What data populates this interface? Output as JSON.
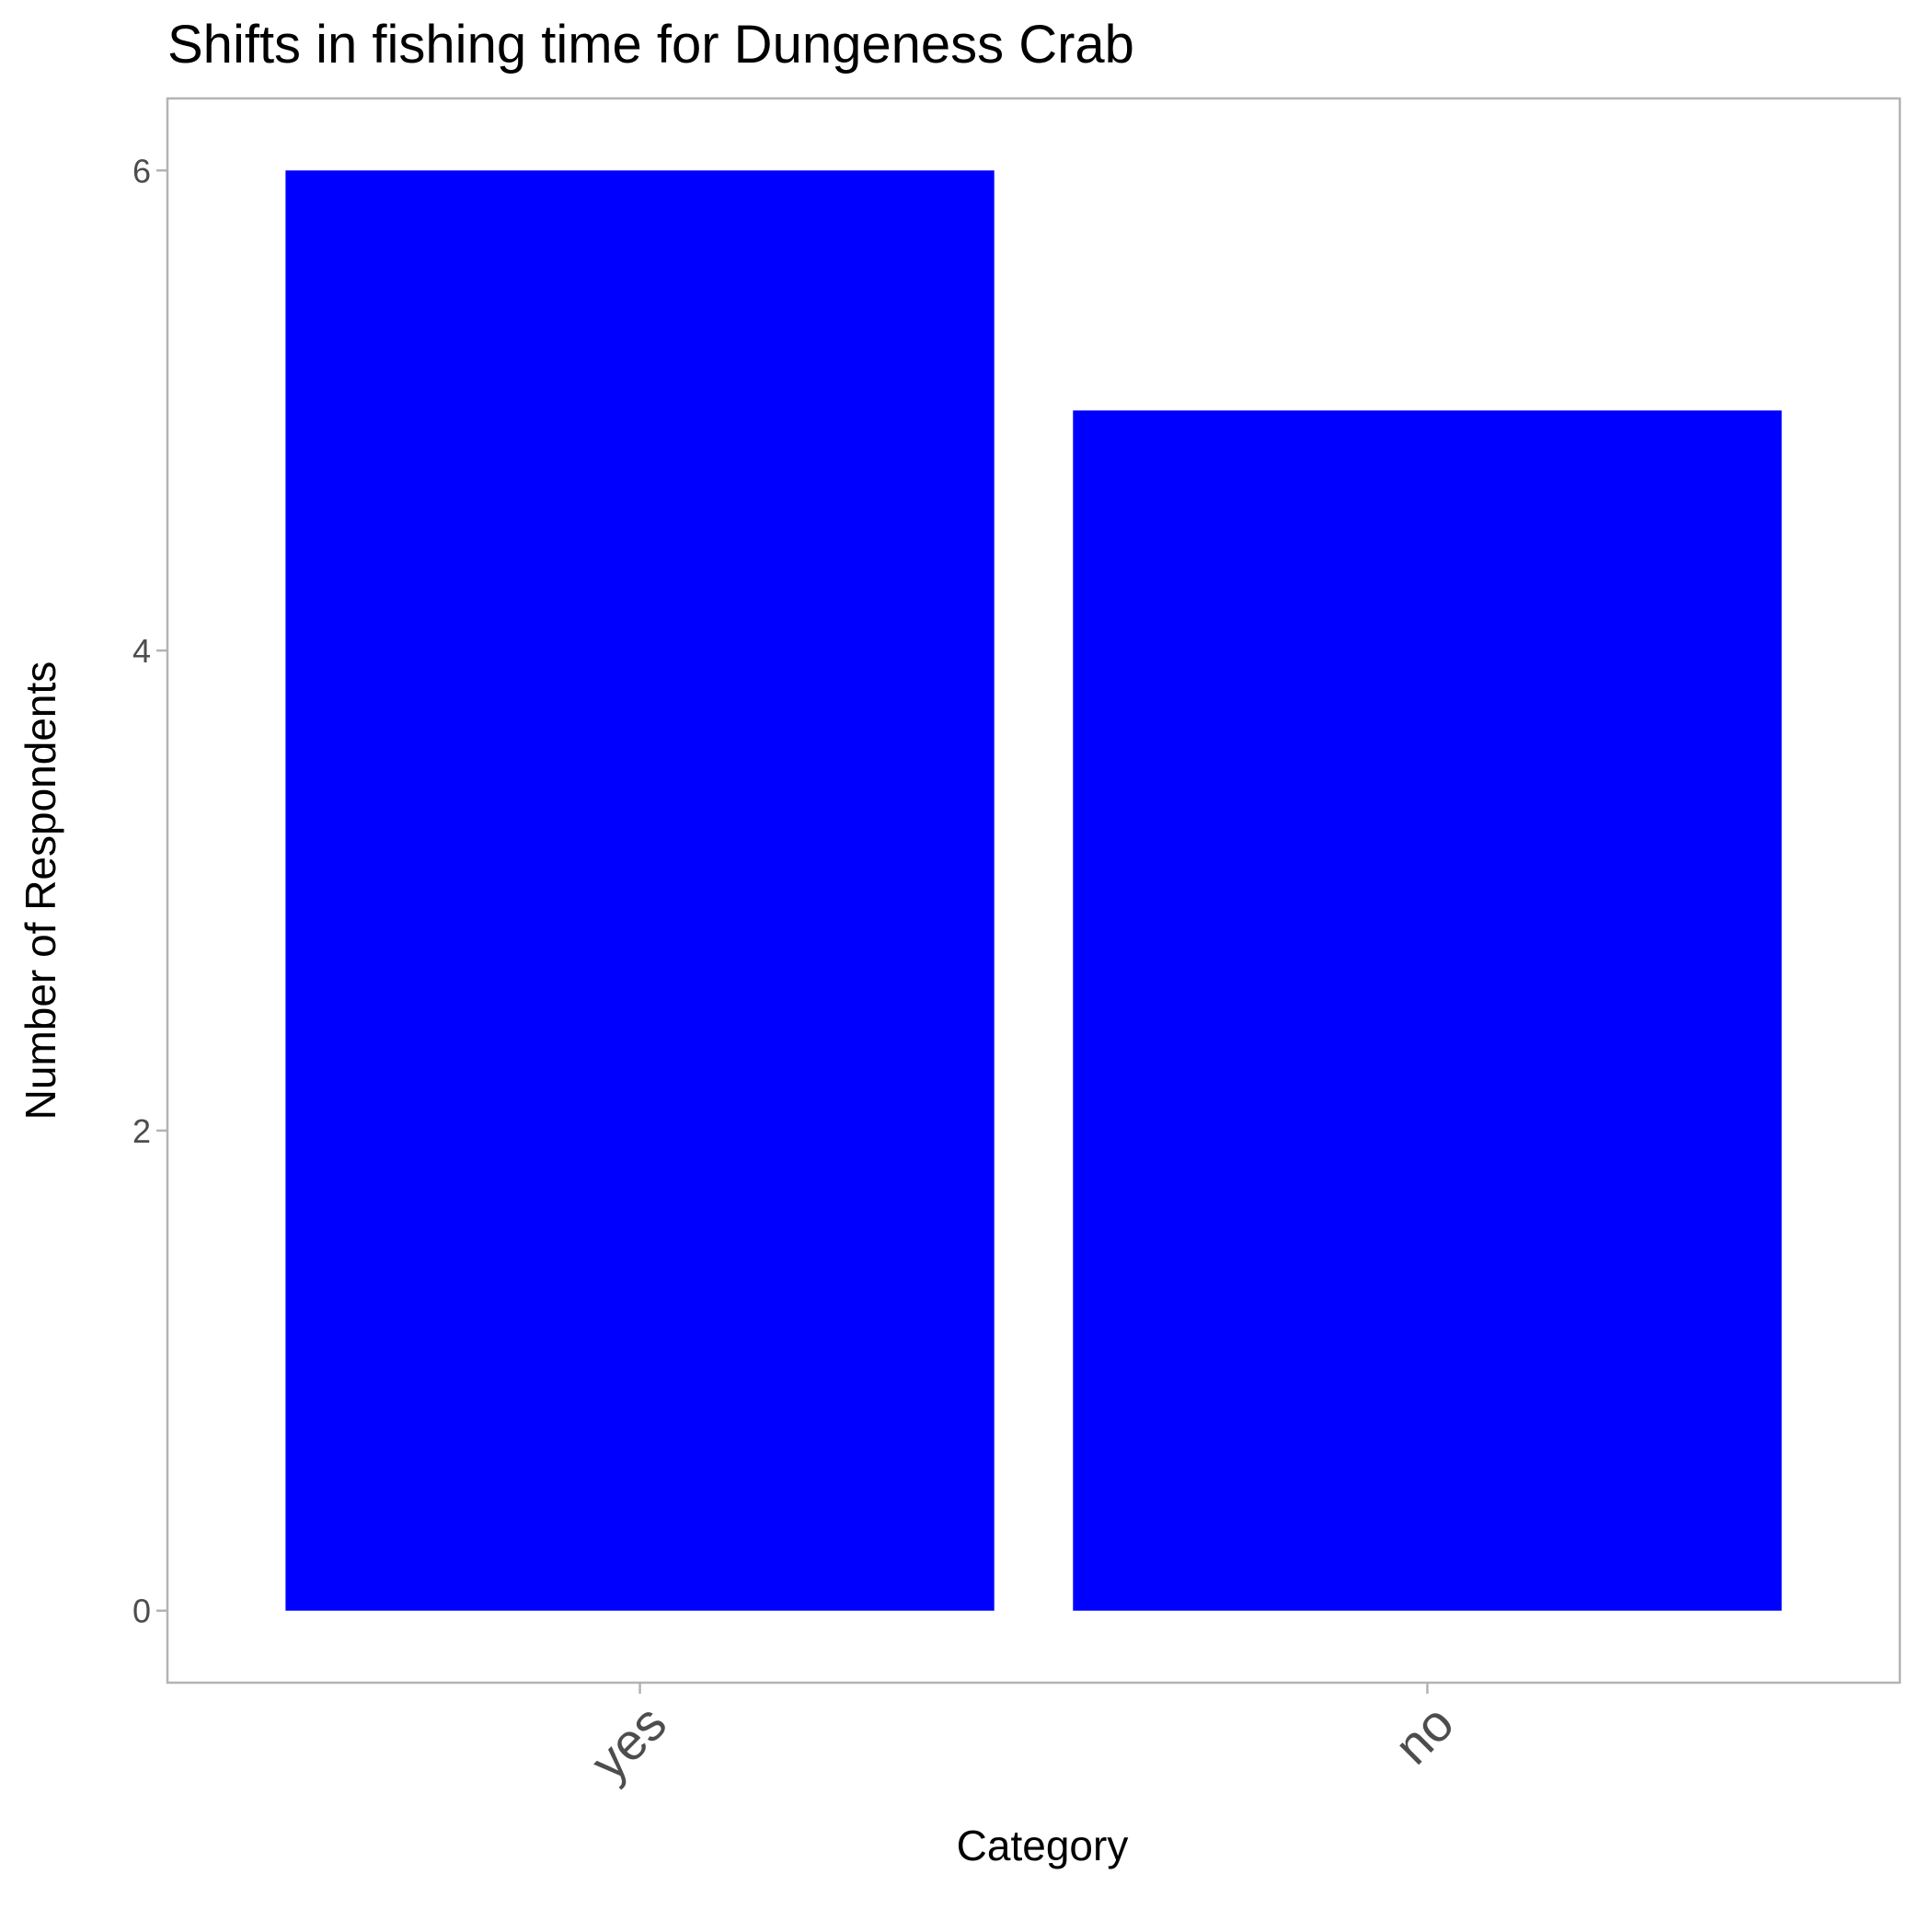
{
  "chart_data": {
    "type": "bar",
    "title": "Shifts in fishing time for Dungeness Crab",
    "xlabel": "Category",
    "ylabel": "Number of Respondents",
    "categories": [
      "yes",
      "no"
    ],
    "values": [
      6,
      5
    ],
    "yticks": [
      0,
      2,
      4,
      6
    ],
    "ylim": [
      -0.3,
      6.3
    ],
    "grid": false,
    "bar_color": "#0000ff",
    "panel_border_color": "#b3b3b3"
  }
}
